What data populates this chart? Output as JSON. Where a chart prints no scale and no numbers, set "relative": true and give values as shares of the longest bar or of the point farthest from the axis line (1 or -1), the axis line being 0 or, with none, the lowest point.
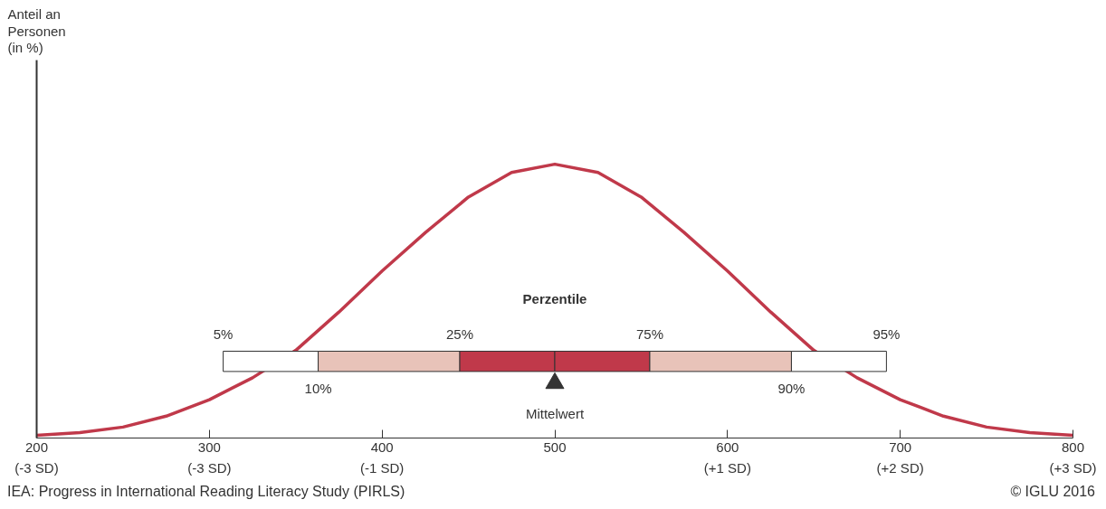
{
  "chart_data": {
    "type": "line",
    "relative": true,
    "tick_labels": "x",
    "grid": false,
    "xlim": [
      200,
      800
    ],
    "xticks": [
      200,
      300,
      400,
      500,
      600,
      700,
      800
    ],
    "series": [
      {
        "color": "#c0394a",
        "x": [
          200,
          225,
          250,
          275,
          300,
          325,
          350,
          375,
          400,
          425,
          450,
          475,
          500,
          525,
          550,
          575,
          600,
          625,
          650,
          675,
          700,
          725,
          750,
          775,
          800
        ],
        "values": [
          0.01,
          0.02,
          0.04,
          0.08,
          0.14,
          0.22,
          0.32,
          0.46,
          0.61,
          0.75,
          0.88,
          0.97,
          1,
          0.97,
          0.88,
          0.75,
          0.61,
          0.46,
          0.32,
          0.22,
          0.14,
          0.08,
          0.04,
          0.02,
          0.01
        ]
      },
      {
        "type": "scatter",
        "marker": "triangle",
        "color": "#333333",
        "x": [
          500
        ],
        "values": [
          0.2
        ]
      }
    ],
    "bands": [
      {
        "axis": "x",
        "from": 308,
        "to": 363,
        "color": "#ffffff"
      },
      {
        "axis": "x",
        "from": 363,
        "to": 445,
        "color": "#e8c3b9"
      },
      {
        "axis": "x",
        "from": 445,
        "to": 500,
        "color": "#c0394a"
      },
      {
        "axis": "x",
        "from": 500,
        "to": 555,
        "color": "#c0394a"
      },
      {
        "axis": "x",
        "from": 555,
        "to": 637,
        "color": "#e8c3b9"
      },
      {
        "axis": "x",
        "from": 637,
        "to": 692,
        "color": "#ffffff"
      }
    ],
    "annotations": [
      "Perzentile",
      "5%",
      "10%",
      "25%",
      "Mittelwert",
      "75%",
      "90%",
      "95%",
      "(-3 SD)",
      "(-3 SD)",
      "(-1 SD)",
      "(+1 SD)",
      "(+2 SD)",
      "(+3 SD)",
      "IEA: Progress in International Reading Literacy Study (PIRLS)",
      "© IGLU 2016",
      "Anteil an\nPersonen\n(in %)"
    ]
  }
}
